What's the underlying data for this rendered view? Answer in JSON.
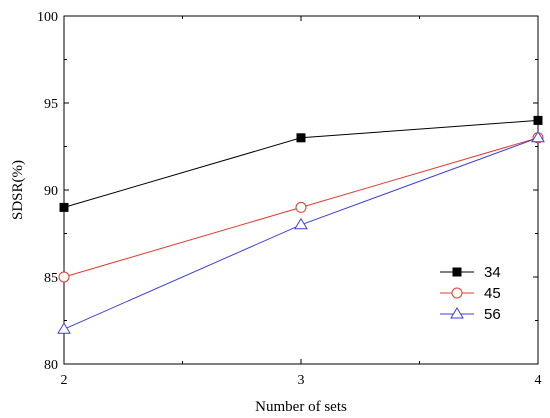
{
  "chart_data": {
    "type": "line",
    "xlabel": "Number of sets",
    "ylabel": "SDSR(%)",
    "x": [
      2,
      3,
      4
    ],
    "xlim": [
      2,
      4
    ],
    "ylim": [
      80,
      100
    ],
    "x_ticks": [
      2,
      3,
      4
    ],
    "y_ticks": [
      80,
      85,
      90,
      95,
      100
    ],
    "grid": false,
    "legend_position": "right",
    "series": [
      {
        "name": "34",
        "values": [
          89,
          93,
          94
        ],
        "color": "#000000",
        "marker": "filled-square"
      },
      {
        "name": "45",
        "values": [
          85,
          89,
          93
        ],
        "color": "#e03c31",
        "marker": "open-circle"
      },
      {
        "name": "56",
        "values": [
          82,
          88,
          93
        ],
        "color": "#3f3fdc",
        "marker": "open-triangle"
      }
    ]
  }
}
